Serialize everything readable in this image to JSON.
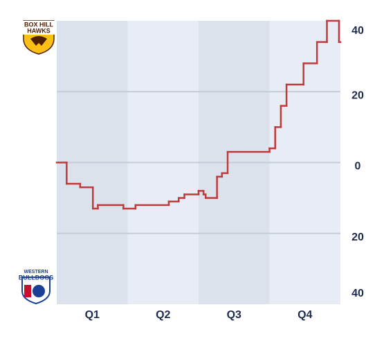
{
  "chart_data": {
    "type": "line",
    "step": true,
    "top_team": [
      "BOX HILL",
      "HAWKS"
    ],
    "bottom_team": [
      "WESTERN",
      "BULLDOGS"
    ],
    "categories": [
      "Q1",
      "Q2",
      "Q3",
      "Q4"
    ],
    "band_colors": [
      "#dce2eb",
      "#e8edf5"
    ],
    "xlim": [
      0,
      4
    ],
    "ylim": [
      -40,
      40
    ],
    "yticks": [
      {
        "value": -40,
        "label": "40"
      },
      {
        "value": -20,
        "label": "20"
      },
      0,
      20,
      40
    ],
    "grid": true,
    "color": "#c0393b",
    "x": [
      0,
      0.14,
      0.33,
      0.51,
      0.58,
      0.94,
      1.11,
      1.58,
      1.72,
      1.8,
      2.0,
      2.07,
      2.1,
      2.26,
      2.33,
      2.41,
      3.0,
      3.08,
      3.16,
      3.24,
      3.48,
      3.67,
      3.81,
      3.98
    ],
    "values": [
      0,
      -6,
      -7,
      -13,
      -12,
      -13,
      -12,
      -11,
      -10,
      -9,
      -8,
      -9,
      -10,
      -4,
      -3,
      3,
      4,
      10,
      16,
      22,
      28,
      34,
      40,
      34
    ]
  }
}
